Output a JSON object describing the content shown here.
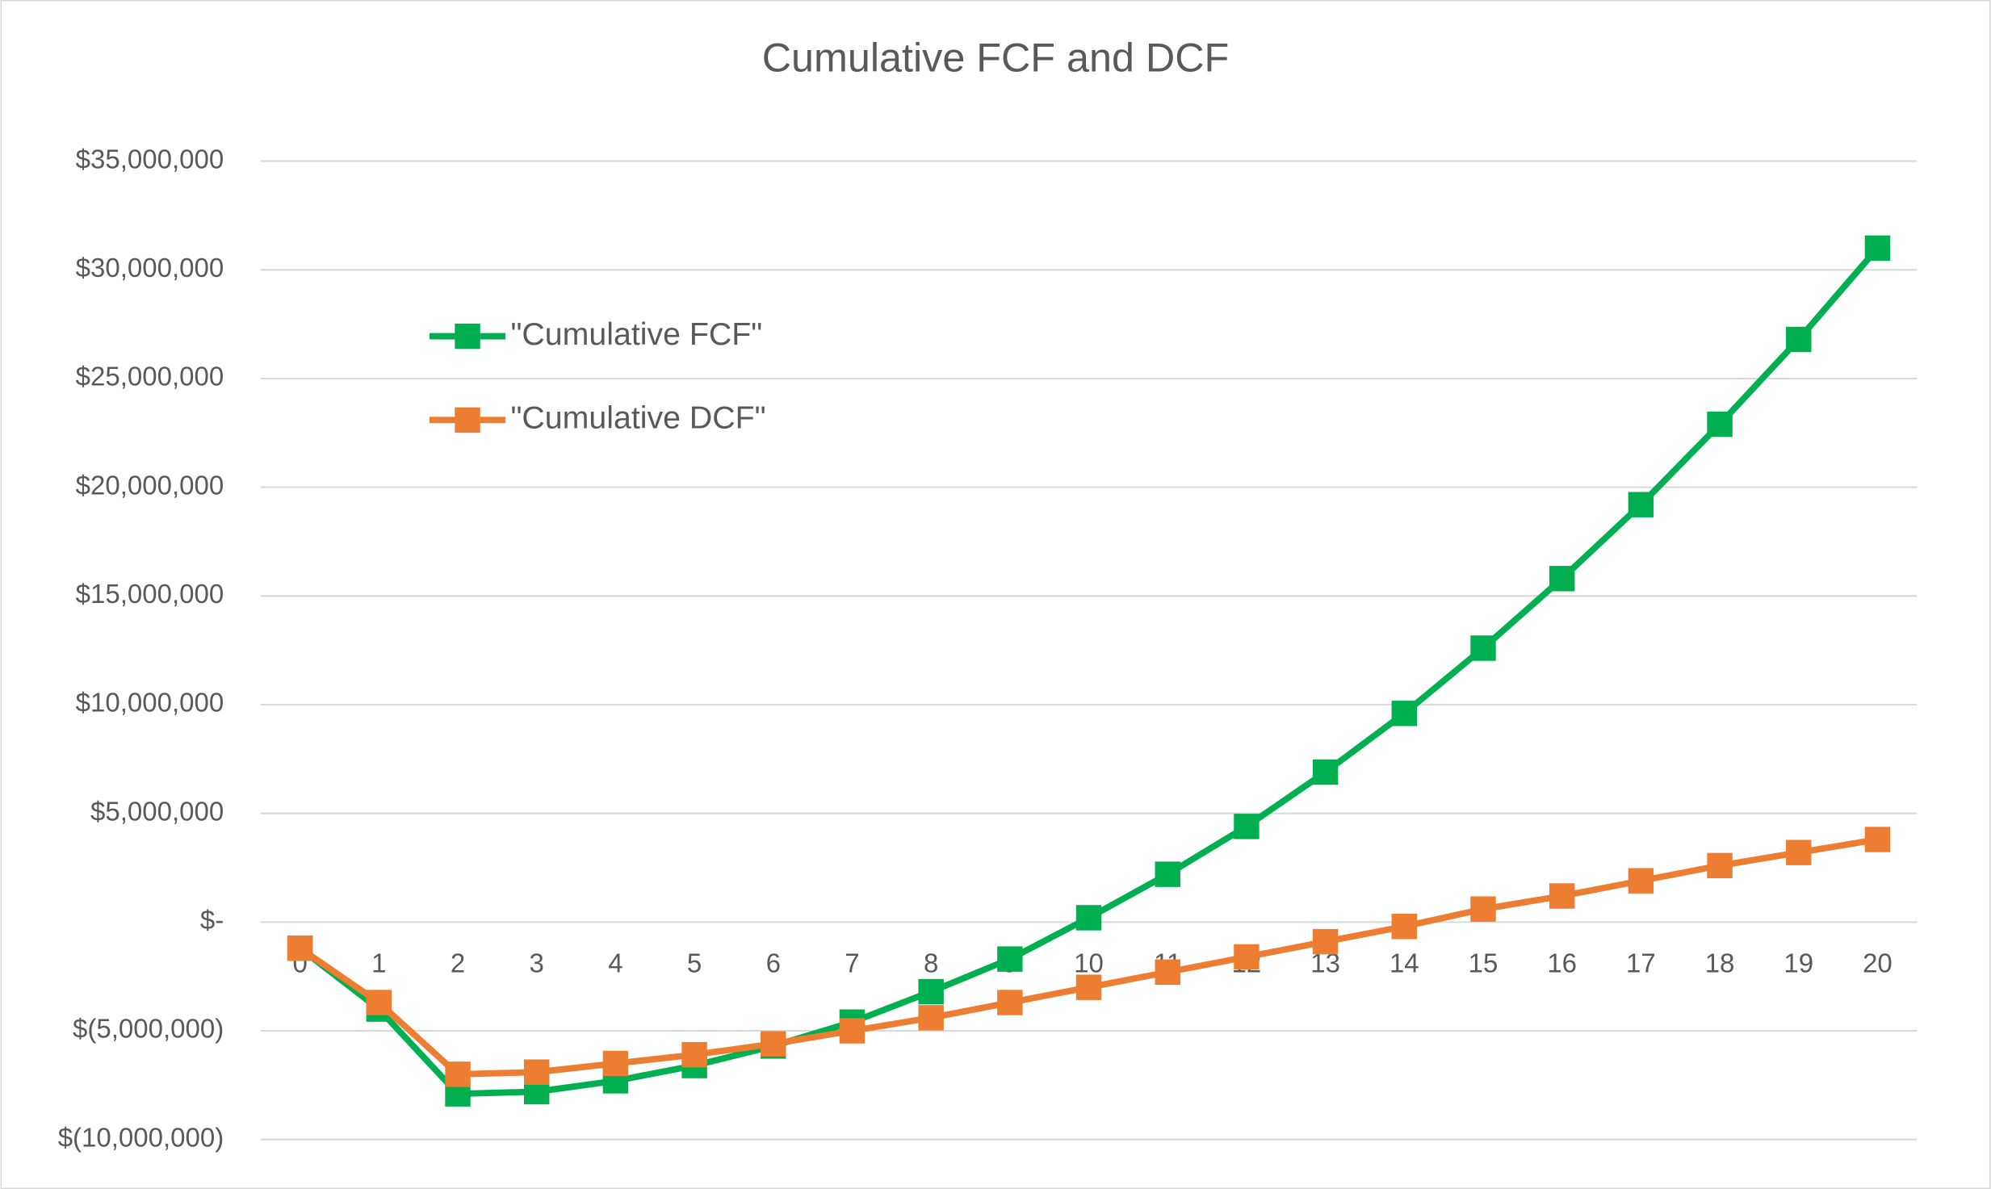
{
  "chart_data": {
    "type": "line",
    "title": "Cumulative FCF and DCF",
    "categories": [
      "0",
      "1",
      "2",
      "3",
      "4",
      "5",
      "6",
      "7",
      "8",
      "9",
      "10",
      "11",
      "12",
      "13",
      "14",
      "15",
      "16",
      "17",
      "18",
      "19",
      "20"
    ],
    "series": [
      {
        "name": "\"Cumulative FCF\"",
        "color": "#00b050",
        "values": [
          -1200000,
          -4000000,
          -7900000,
          -7800000,
          -7300000,
          -6600000,
          -5700000,
          -4600000,
          -3200000,
          -1700000,
          200000,
          2200000,
          4400000,
          6900000,
          9600000,
          12600000,
          15800000,
          19200000,
          22900000,
          26800000,
          31000000
        ]
      },
      {
        "name": "\"Cumulative DCF\"",
        "color": "#ed7d31",
        "values": [
          -1200000,
          -3700000,
          -7000000,
          -6900000,
          -6500000,
          -6100000,
          -5600000,
          -5000000,
          -4400000,
          -3700000,
          -3000000,
          -2300000,
          -1600000,
          -900000,
          -200000,
          600000,
          1200000,
          1900000,
          2600000,
          3200000,
          3800000
        ]
      }
    ],
    "ylim": [
      -10000000,
      35000000
    ],
    "yticks": [
      {
        "value": -10000000,
        "label": "$(10,000,000)"
      },
      {
        "value": -5000000,
        "label": "$(5,000,000)"
      },
      {
        "value": 0,
        "label": "$-"
      },
      {
        "value": 5000000,
        "label": "$5,000,000"
      },
      {
        "value": 10000000,
        "label": "$10,000,000"
      },
      {
        "value": 15000000,
        "label": "$15,000,000"
      },
      {
        "value": 20000000,
        "label": "$20,000,000"
      },
      {
        "value": 25000000,
        "label": "$25,000,000"
      },
      {
        "value": 30000000,
        "label": "$30,000,000"
      },
      {
        "value": 35000000,
        "label": "$35,000,000"
      }
    ],
    "grid": true
  }
}
